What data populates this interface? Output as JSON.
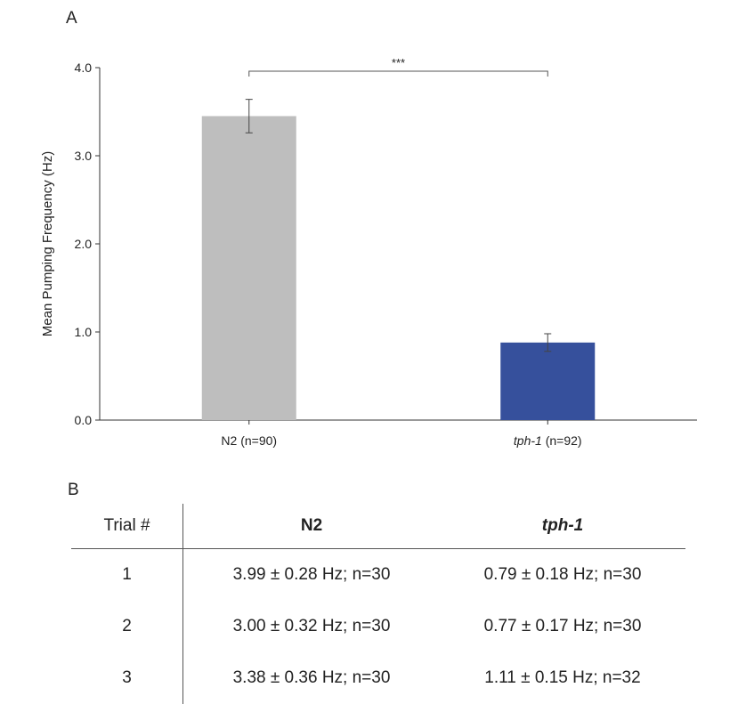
{
  "panel_labels": {
    "a": "A",
    "b": "B"
  },
  "chart_data": {
    "type": "bar",
    "title": "",
    "ylabel": "Mean Pumping Frequency (Hz)",
    "xlabel": "",
    "ylim": [
      0,
      4
    ],
    "yticks": [
      "0.0",
      "1.0",
      "2.0",
      "3.0",
      "4.0"
    ],
    "categories": [
      {
        "name": "N2",
        "suffix": " (n=90)",
        "italic": false
      },
      {
        "name": "tph-1",
        "suffix": " (n=92)",
        "italic": true
      }
    ],
    "values": [
      3.45,
      0.88
    ],
    "errors": [
      0.19,
      0.1
    ],
    "colors": [
      "#bebebe",
      "#36509c"
    ],
    "significance": {
      "label": "***",
      "between": [
        0,
        1
      ],
      "y": 4.0
    },
    "grid": false
  },
  "table": {
    "headers": {
      "trial": "Trial #",
      "n2": "N2",
      "tph1": "tph-1"
    },
    "rows": [
      {
        "trial": "1",
        "n2": "3.99 ± 0.28 Hz; n=30",
        "tph1": "0.79 ± 0.18 Hz; n=30"
      },
      {
        "trial": "2",
        "n2": "3.00 ± 0.32 Hz; n=30",
        "tph1": "0.77 ± 0.17 Hz; n=30"
      },
      {
        "trial": "3",
        "n2": "3.38 ± 0.36 Hz; n=30",
        "tph1": "1.11 ± 0.15 Hz; n=32"
      }
    ]
  }
}
